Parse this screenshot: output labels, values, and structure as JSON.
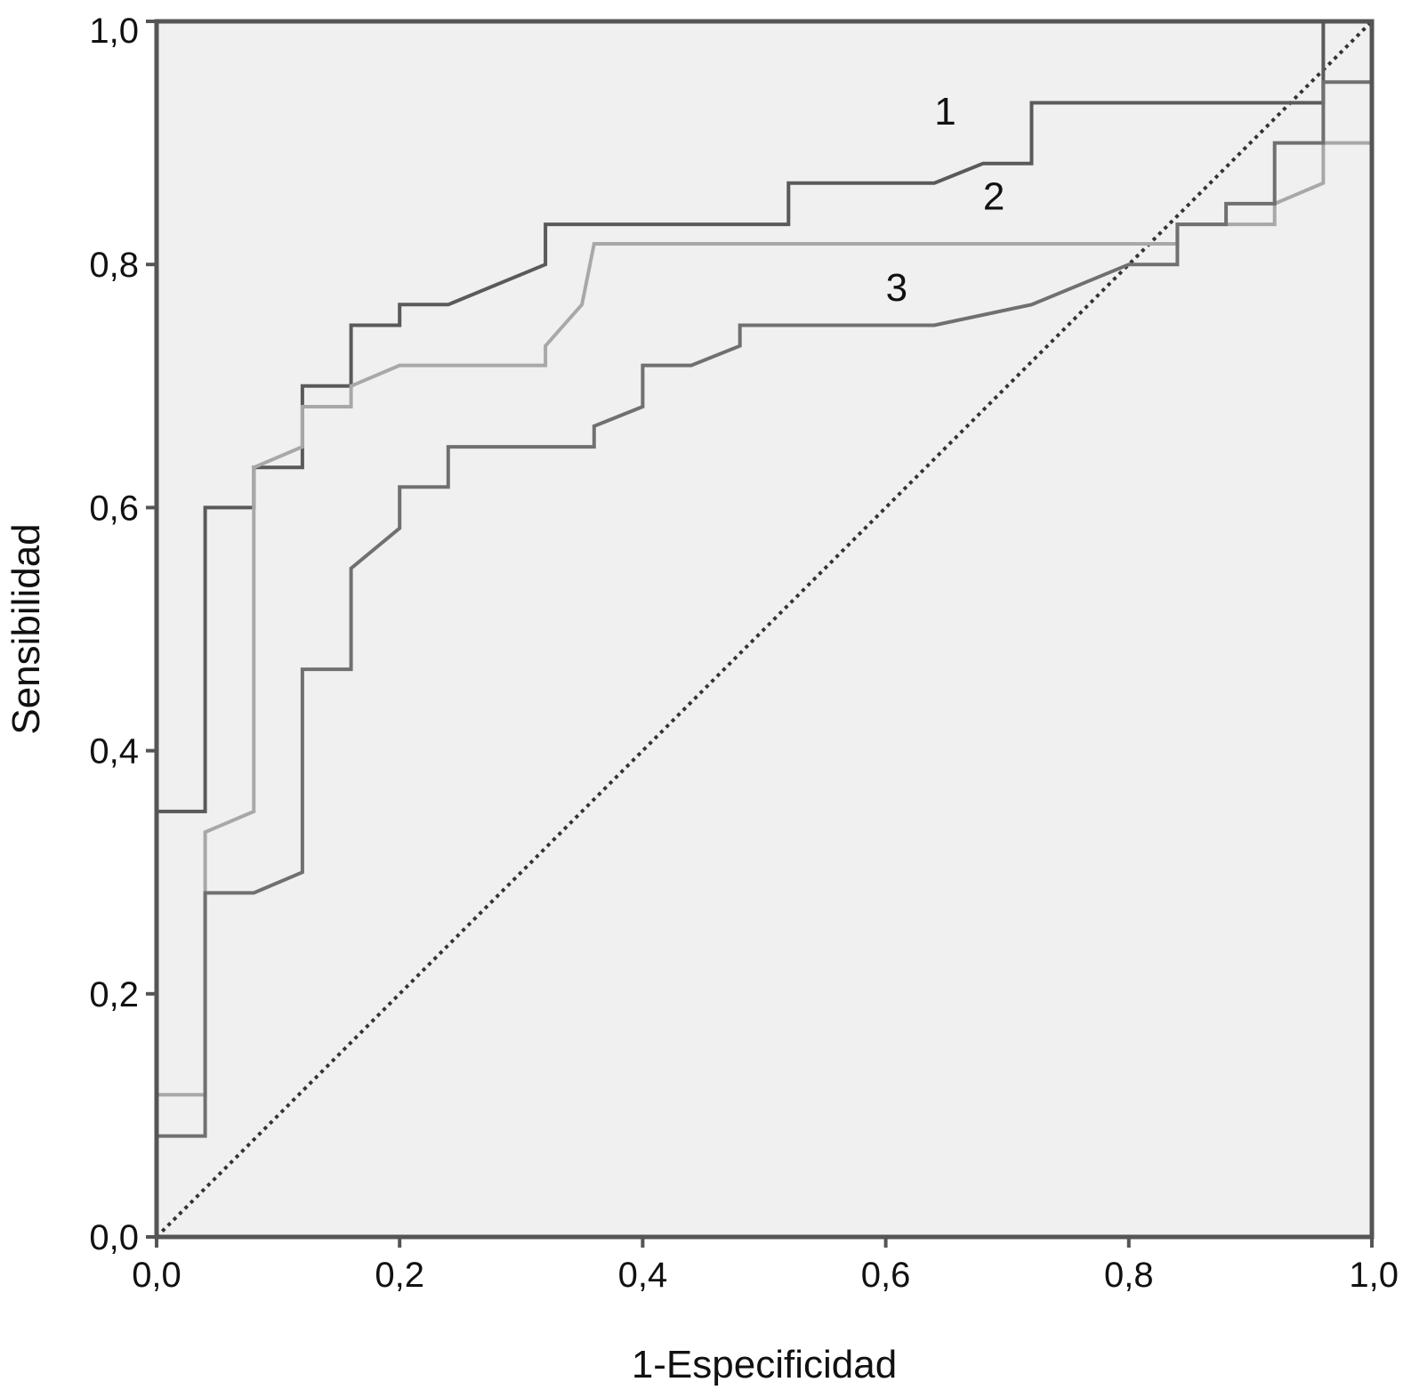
{
  "chart_data": {
    "type": "line",
    "title": "",
    "xlabel": "1-Especificidad",
    "ylabel": "Sensibilidad",
    "xlim": [
      0,
      1
    ],
    "ylim": [
      0,
      1
    ],
    "xticks": [
      "0,0",
      "0,2",
      "0,4",
      "0,6",
      "0,8",
      "1,0"
    ],
    "yticks": [
      "0,0",
      "0,2",
      "0,4",
      "0,6",
      "0,8",
      "1,0"
    ],
    "grid": false,
    "colors": {
      "plot_background": "#f0f0f0",
      "frame": "#555555",
      "curve_1": "#5a5a5a",
      "curve_2": "#a8a8a8",
      "curve_3": "#707070",
      "reference": "#333333"
    },
    "series": [
      {
        "label": "1",
        "label_pos": [
          0.64,
          0.915
        ],
        "points": [
          [
            0,
            0
          ],
          [
            0,
            0.35
          ],
          [
            0.04,
            0.35
          ],
          [
            0.04,
            0.6
          ],
          [
            0.08,
            0.6
          ],
          [
            0.08,
            0.633
          ],
          [
            0.12,
            0.633
          ],
          [
            0.12,
            0.7
          ],
          [
            0.16,
            0.7
          ],
          [
            0.16,
            0.75
          ],
          [
            0.2,
            0.75
          ],
          [
            0.2,
            0.767
          ],
          [
            0.24,
            0.767
          ],
          [
            0.32,
            0.8
          ],
          [
            0.32,
            0.833
          ],
          [
            0.52,
            0.833
          ],
          [
            0.52,
            0.867
          ],
          [
            0.64,
            0.867
          ],
          [
            0.68,
            0.883
          ],
          [
            0.72,
            0.883
          ],
          [
            0.72,
            0.933
          ],
          [
            0.96,
            0.933
          ],
          [
            0.96,
            1.0
          ],
          [
            1,
            1.0
          ]
        ]
      },
      {
        "label": "2",
        "label_pos": [
          0.68,
          0.845
        ],
        "points": [
          [
            0,
            0
          ],
          [
            0,
            0.117
          ],
          [
            0.04,
            0.117
          ],
          [
            0.04,
            0.333
          ],
          [
            0.08,
            0.35
          ],
          [
            0.08,
            0.633
          ],
          [
            0.12,
            0.65
          ],
          [
            0.12,
            0.683
          ],
          [
            0.16,
            0.683
          ],
          [
            0.16,
            0.7
          ],
          [
            0.2,
            0.717
          ],
          [
            0.32,
            0.717
          ],
          [
            0.32,
            0.733
          ],
          [
            0.35,
            0.767
          ],
          [
            0.36,
            0.817
          ],
          [
            0.84,
            0.817
          ],
          [
            0.84,
            0.833
          ],
          [
            0.92,
            0.833
          ],
          [
            0.92,
            0.85
          ],
          [
            0.96,
            0.867
          ],
          [
            0.96,
            0.9
          ],
          [
            1,
            0.9
          ],
          [
            1,
            1.0
          ]
        ]
      },
      {
        "label": "3",
        "label_pos": [
          0.6,
          0.77
        ],
        "points": [
          [
            0,
            0
          ],
          [
            0,
            0.083
          ],
          [
            0.04,
            0.083
          ],
          [
            0.04,
            0.283
          ],
          [
            0.08,
            0.283
          ],
          [
            0.12,
            0.3
          ],
          [
            0.12,
            0.467
          ],
          [
            0.16,
            0.467
          ],
          [
            0.16,
            0.55
          ],
          [
            0.2,
            0.583
          ],
          [
            0.2,
            0.617
          ],
          [
            0.24,
            0.617
          ],
          [
            0.24,
            0.65
          ],
          [
            0.36,
            0.65
          ],
          [
            0.36,
            0.667
          ],
          [
            0.4,
            0.683
          ],
          [
            0.4,
            0.717
          ],
          [
            0.44,
            0.717
          ],
          [
            0.48,
            0.733
          ],
          [
            0.48,
            0.75
          ],
          [
            0.64,
            0.75
          ],
          [
            0.72,
            0.767
          ],
          [
            0.8,
            0.8
          ],
          [
            0.84,
            0.8
          ],
          [
            0.84,
            0.833
          ],
          [
            0.88,
            0.833
          ],
          [
            0.88,
            0.85
          ],
          [
            0.92,
            0.85
          ],
          [
            0.92,
            0.9
          ],
          [
            0.96,
            0.9
          ],
          [
            0.96,
            0.95
          ],
          [
            1,
            0.95
          ],
          [
            1,
            1.0
          ]
        ]
      }
    ],
    "reference_line": {
      "points": [
        [
          0,
          0
        ],
        [
          1,
          1
        ]
      ],
      "style": "dotted"
    }
  }
}
